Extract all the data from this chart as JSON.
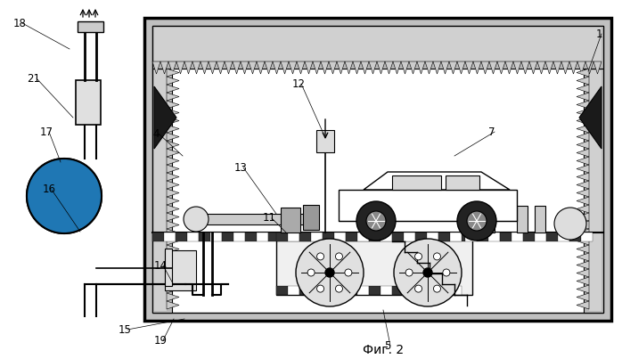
{
  "bg_color": "#ffffff",
  "line_color": "#000000",
  "fig_caption": "Фиг. 2"
}
